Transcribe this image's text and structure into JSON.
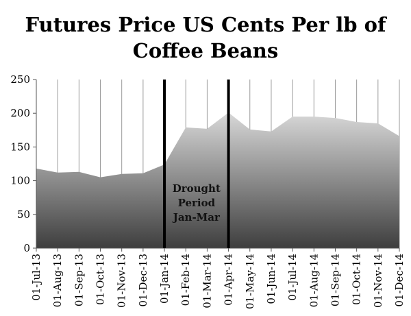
{
  "chart_data": {
    "type": "area",
    "title_lines": [
      "Futures Price US Cents Per lb of",
      "Coffee Beans"
    ],
    "xlabel": "",
    "ylabel": "",
    "ylim": [
      0,
      250
    ],
    "yticks": [
      0,
      50,
      100,
      150,
      200,
      250
    ],
    "grid": "vertical",
    "categories": [
      "01-Jul-13",
      "01-Aug-13",
      "01-Sep-13",
      "01-Oct-13",
      "01-Nov-13",
      "01-Dec-13",
      "01-Jan-14",
      "01-Feb-14",
      "01-Mar-14",
      "01-Apr-14",
      "01-May-14",
      "01-Jun-14",
      "01-Jul-14",
      "01-Aug-14",
      "01-Sep-14",
      "01-Oct-14",
      "01-Nov-14",
      "01-Dec-14"
    ],
    "series": [
      {
        "values": [
          118,
          112,
          113,
          105,
          110,
          111,
          124,
          179,
          177,
          201,
          176,
          173,
          195,
          195,
          193,
          187,
          185,
          166
        ]
      }
    ],
    "annotation": {
      "lines": [
        "Drought",
        "Period",
        "Jan-Mar"
      ]
    },
    "markers": [
      "01-Jan-14",
      "01-Apr-14"
    ]
  }
}
